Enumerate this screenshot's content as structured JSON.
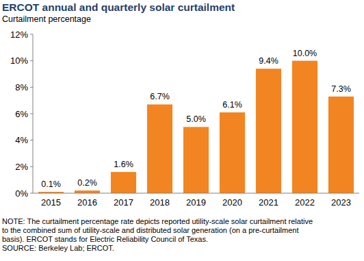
{
  "chart_data": {
    "type": "bar",
    "title": "ERCOT annual and quarterly solar curtailment",
    "subtitle": "Curtailment percentage",
    "categories": [
      "2015",
      "2016",
      "2017",
      "2018",
      "2019",
      "2020",
      "2021",
      "2022",
      "2023"
    ],
    "values": [
      0.1,
      0.2,
      1.6,
      6.7,
      5.0,
      6.1,
      9.4,
      10.0,
      7.3
    ],
    "value_labels": [
      "0.1%",
      "0.2%",
      "1.6%",
      "6.7%",
      "5.0%",
      "6.1%",
      "9.4%",
      "10.0%",
      "7.3%"
    ],
    "color": "#f28522",
    "ylim": [
      0,
      12
    ],
    "yticks": [
      {
        "value": 0,
        "label": "0%"
      },
      {
        "value": 2,
        "label": "2%"
      },
      {
        "value": 4,
        "label": "4%"
      },
      {
        "value": 6,
        "label": "6%"
      },
      {
        "value": 8,
        "label": "8%"
      },
      {
        "value": 10,
        "label": "10%"
      },
      {
        "value": 12,
        "label": "12%"
      }
    ],
    "grid": false,
    "data_labels": true,
    "notes": [
      "NOTE: The curtailment percentage rate depicts reported utility-scale solar curtailment relative",
      "to the combined sum of utility-scale and distributed solar generation (on a pre-curtailment",
      "basis). ERCOT stands for Electric Reliability Council of Texas."
    ],
    "source": "SOURCE: Berkeley Lab; ERCOT."
  }
}
